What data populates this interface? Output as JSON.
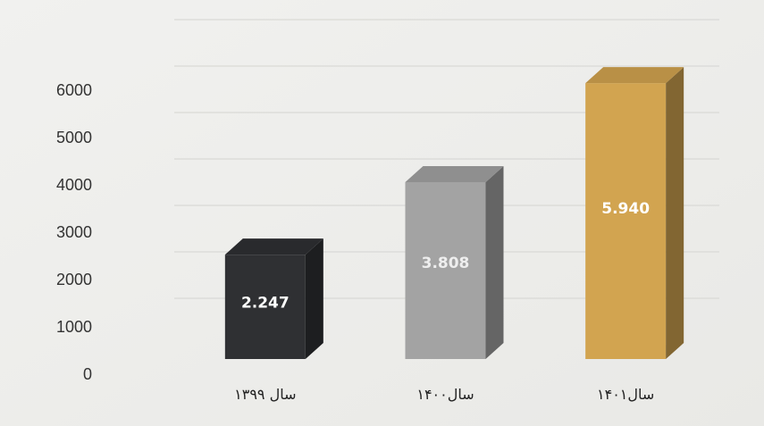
{
  "chart_data": {
    "type": "bar",
    "style": "3d-column",
    "categories": [
      "سال ۱۳۹۹",
      "سال۱۴۰۰",
      "سال۱۴۰۱"
    ],
    "values": [
      2247,
      3808,
      5940
    ],
    "data_labels": [
      "2.247",
      "3.808",
      "5.940"
    ],
    "ylim": [
      0,
      6000
    ],
    "yticks": [
      "0",
      "1000",
      "2000",
      "3000",
      "4000",
      "5000",
      "6000"
    ],
    "grid": true,
    "legend": "none",
    "colors": [
      "#2f3033",
      "#a3a3a3",
      "#d2a450"
    ],
    "label_colors": [
      "#ffffff",
      "#eeeeee",
      "#ffffff"
    ]
  }
}
